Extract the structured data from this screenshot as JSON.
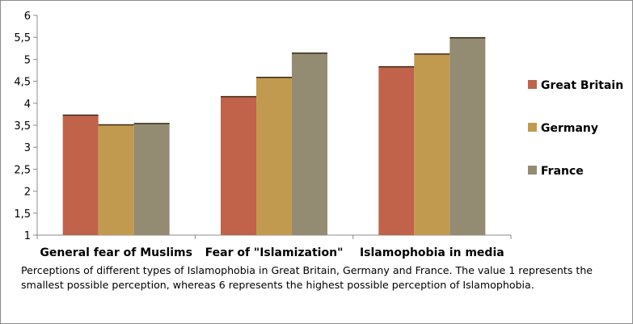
{
  "chart_data": {
    "type": "bar",
    "categories": [
      "General fear of Muslims",
      "Fear of \"Islamization\"",
      "Islamophobia in media"
    ],
    "series": [
      {
        "name": "Great Britain",
        "values": [
          3.73,
          4.15,
          4.83
        ],
        "color": "#c0634a"
      },
      {
        "name": "Germany",
        "values": [
          3.51,
          4.59,
          5.12
        ],
        "color": "#c19a50"
      },
      {
        "name": "France",
        "values": [
          3.54,
          5.14,
          5.49
        ],
        "color": "#948b73"
      }
    ],
    "title": "",
    "xlabel": "",
    "ylabel": "",
    "ylim": [
      1,
      6
    ],
    "yticks": [
      "1",
      "1,5",
      "2",
      "2,5",
      "3",
      "3,5",
      "4",
      "4,5",
      "5",
      "5,5",
      "6"
    ],
    "grid": false,
    "legend_position": "right"
  },
  "caption": "Perceptions of different types of Islamophobia in Great Britain, Germany and France. The value 1 represents the smallest possible perception, whereas 6 represents the highest possible perception of Islamophobia."
}
